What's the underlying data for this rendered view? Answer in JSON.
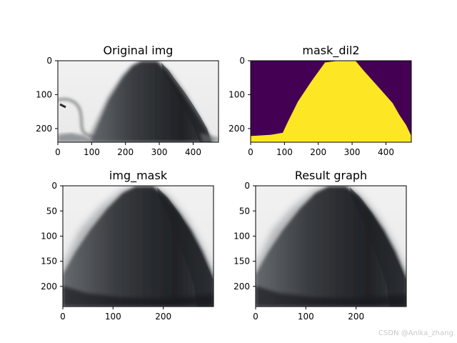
{
  "watermark": "CSDN @Anika_zhang",
  "colors": {
    "viridis_low": "#440154",
    "viridis_high": "#fde725",
    "background_gray": "#eeeeee",
    "dark_gray": "#2a2d31"
  },
  "chart_data": [
    {
      "type": "image",
      "title": "Original img",
      "xlim": [
        0,
        475
      ],
      "ylim": [
        240,
        0
      ],
      "xticks": [
        0,
        100,
        200,
        300,
        400
      ],
      "yticks": [
        0,
        100,
        200
      ],
      "content": "grayscale photo"
    },
    {
      "type": "image",
      "title": "mask_dil2",
      "xlim": [
        0,
        475
      ],
      "ylim": [
        240,
        0
      ],
      "xticks": [
        0,
        100,
        200,
        300,
        400
      ],
      "yticks": [
        0,
        100,
        200
      ],
      "content": "binary mask",
      "mask_outline": [
        [
          0,
          222
        ],
        [
          30,
          220
        ],
        [
          60,
          218
        ],
        [
          95,
          212
        ],
        [
          110,
          180
        ],
        [
          140,
          120
        ],
        [
          180,
          60
        ],
        [
          220,
          5
        ],
        [
          260,
          0
        ],
        [
          310,
          0
        ],
        [
          335,
          30
        ],
        [
          380,
          80
        ],
        [
          420,
          125
        ],
        [
          440,
          160
        ],
        [
          460,
          190
        ],
        [
          475,
          222
        ]
      ]
    },
    {
      "type": "image",
      "title": "img_mask",
      "xlim": [
        0,
        300
      ],
      "ylim": [
        240,
        0
      ],
      "xticks": [
        0,
        100,
        200
      ],
      "yticks": [
        0,
        50,
        100,
        150,
        200
      ],
      "content": "cropped grayscale photo"
    },
    {
      "type": "image",
      "title": "Result graph",
      "xlim": [
        0,
        300
      ],
      "ylim": [
        240,
        0
      ],
      "xticks": [
        0,
        100,
        200
      ],
      "yticks": [
        0,
        50,
        100,
        150,
        200
      ],
      "content": "cropped grayscale photo"
    }
  ]
}
